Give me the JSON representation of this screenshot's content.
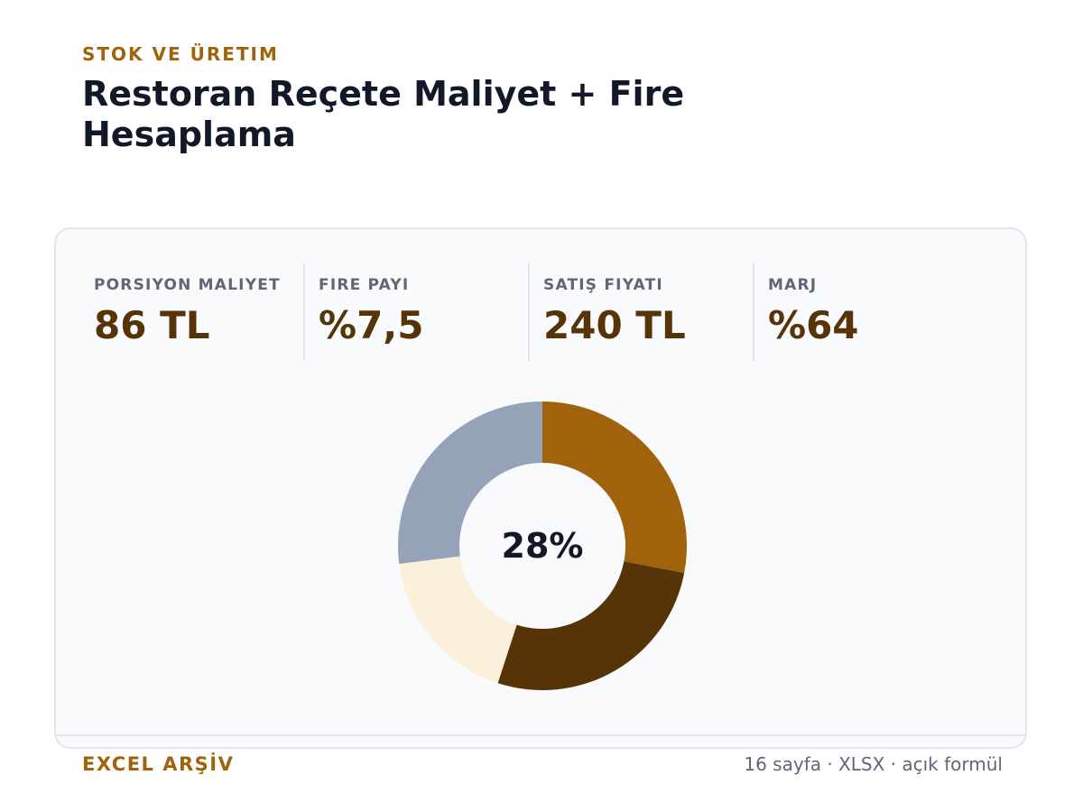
{
  "header": {
    "eyebrow": "STOK VE ÜRETIM",
    "title": "Restoran Reçete Maliyet + Fire Hesaplama"
  },
  "kpis": [
    {
      "label": "PORSIYON MALIYET",
      "value": "86 TL"
    },
    {
      "label": "FIRE PAYI",
      "value": "%7,5"
    },
    {
      "label": "SATIŞ FIYATI",
      "value": "240 TL"
    },
    {
      "label": "MARJ",
      "value": "%64"
    }
  ],
  "chart_data": {
    "type": "pie",
    "center_label": "28%",
    "values": [
      28,
      27,
      18,
      27
    ],
    "colors": [
      "#a0630b",
      "#573407",
      "#fcf0dc",
      "#94a3b8"
    ]
  },
  "footer": {
    "left": "EXCEL ARŞİV",
    "right": "16 sayfa · XLSX · açık formül"
  }
}
